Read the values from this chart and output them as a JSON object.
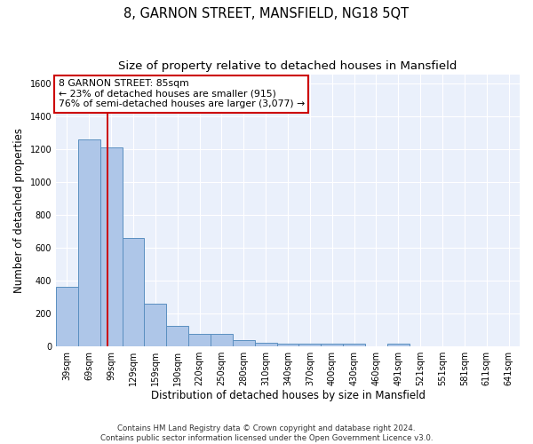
{
  "title": "8, GARNON STREET, MANSFIELD, NG18 5QT",
  "subtitle": "Size of property relative to detached houses in Mansfield",
  "xlabel": "Distribution of detached houses by size in Mansfield",
  "ylabel": "Number of detached properties",
  "categories": [
    "39sqm",
    "69sqm",
    "99sqm",
    "129sqm",
    "159sqm",
    "190sqm",
    "220sqm",
    "250sqm",
    "280sqm",
    "310sqm",
    "340sqm",
    "370sqm",
    "400sqm",
    "430sqm",
    "460sqm",
    "491sqm",
    "521sqm",
    "551sqm",
    "581sqm",
    "611sqm",
    "641sqm"
  ],
  "values": [
    360,
    1260,
    1210,
    660,
    260,
    125,
    75,
    75,
    35,
    22,
    15,
    15,
    15,
    15,
    0,
    15,
    0,
    0,
    0,
    0,
    0
  ],
  "bar_color": "#aec6e8",
  "bar_edge_color": "#5a8fc0",
  "red_line_x": 1.85,
  "annotation_line1": "8 GARNON STREET: 85sqm",
  "annotation_line2": "← 23% of detached houses are smaller (915)",
  "annotation_line3": "76% of semi-detached houses are larger (3,077) →",
  "annotation_box_color": "#ffffff",
  "annotation_box_edge": "#cc0000",
  "ylim": [
    0,
    1650
  ],
  "yticks": [
    0,
    200,
    400,
    600,
    800,
    1000,
    1200,
    1400,
    1600
  ],
  "footer_line1": "Contains HM Land Registry data © Crown copyright and database right 2024.",
  "footer_line2": "Contains public sector information licensed under the Open Government Licence v3.0.",
  "bg_color": "#eaf0fb",
  "fig_bg_color": "#ffffff",
  "grid_color": "#ffffff",
  "title_fontsize": 10.5,
  "subtitle_fontsize": 9.5,
  "tick_fontsize": 7,
  "ylabel_fontsize": 8.5,
  "xlabel_fontsize": 8.5,
  "annot_fontsize": 7.8,
  "footer_fontsize": 6.2
}
